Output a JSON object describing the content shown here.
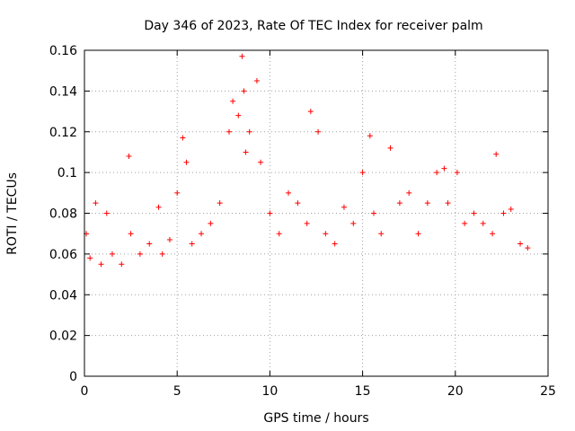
{
  "chart_data": {
    "type": "scatter",
    "title": "Day 346 of 2023, Rate Of TEC Index for receiver palm",
    "xlabel": "GPS time / hours",
    "ylabel": "ROTI / TECUs",
    "xlim": [
      0,
      25
    ],
    "ylim": [
      0,
      0.16
    ],
    "x_ticks": [
      "0",
      "5",
      "10",
      "15",
      "20",
      "25"
    ],
    "y_ticks": [
      "0",
      "0.02",
      "0.04",
      "0.06",
      "0.08",
      "0.1",
      "0.12",
      "0.14",
      "0.16"
    ],
    "grid": true,
    "legend": "none",
    "marker": "+",
    "color": "#ff0000",
    "series": [
      {
        "x": [
          0.1,
          0.3,
          0.6,
          0.9,
          1.2,
          1.5,
          2.0,
          2.4,
          2.5,
          3.0,
          3.5,
          4.0,
          4.2,
          4.6,
          5.0,
          5.3,
          5.5,
          5.8,
          6.3,
          6.8,
          7.3,
          7.8,
          8.0,
          8.3,
          8.5,
          8.6,
          8.7,
          8.9,
          9.3,
          9.5,
          10.0,
          10.5,
          11.0,
          11.5,
          12.0,
          12.2,
          12.6,
          13.0,
          13.5,
          14.0,
          14.5,
          15.0,
          15.4,
          15.6,
          16.0,
          16.5,
          17.0,
          17.5,
          18.0,
          18.5,
          19.0,
          19.4,
          19.6,
          20.1,
          20.5,
          21.0,
          21.5,
          22.0,
          22.2,
          22.6,
          23.0,
          23.5,
          23.9
        ],
        "y": [
          0.07,
          0.058,
          0.085,
          0.055,
          0.08,
          0.06,
          0.055,
          0.108,
          0.07,
          0.06,
          0.065,
          0.083,
          0.06,
          0.067,
          0.09,
          0.117,
          0.105,
          0.065,
          0.07,
          0.075,
          0.085,
          0.12,
          0.135,
          0.128,
          0.157,
          0.14,
          0.11,
          0.12,
          0.145,
          0.105,
          0.08,
          0.07,
          0.09,
          0.085,
          0.075,
          0.13,
          0.12,
          0.07,
          0.065,
          0.083,
          0.075,
          0.1,
          0.118,
          0.08,
          0.07,
          0.112,
          0.085,
          0.09,
          0.07,
          0.085,
          0.1,
          0.102,
          0.085,
          0.1,
          0.075,
          0.08,
          0.075,
          0.07,
          0.109,
          0.08,
          0.082,
          0.065,
          0.063
        ]
      }
    ]
  }
}
